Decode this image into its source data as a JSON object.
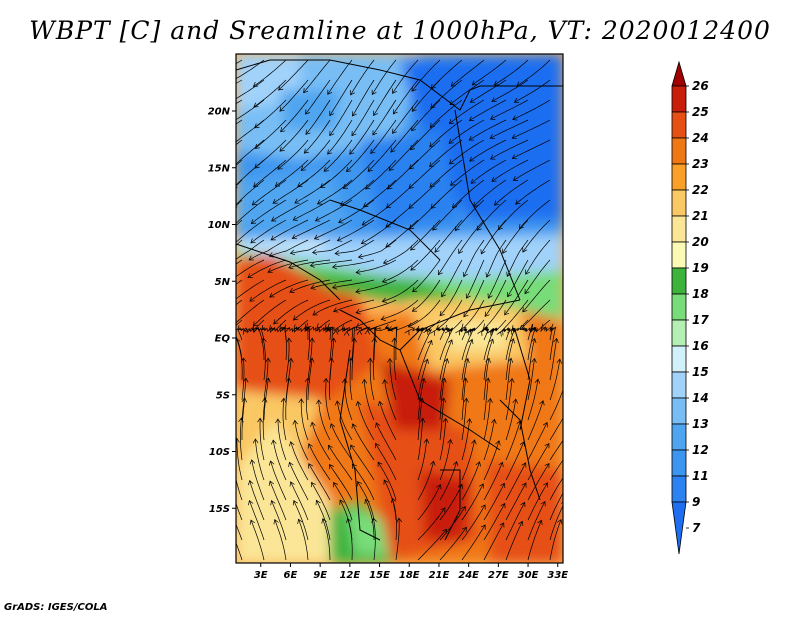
{
  "title": "WBPT [C] and Sreamline at 1000hPa, VT: 2020012400",
  "credit": "GrADS: IGES/COLA",
  "map": {
    "lat_labels": [
      {
        "label": "20N",
        "value": 20
      },
      {
        "label": "15N",
        "value": 15
      },
      {
        "label": "10N",
        "value": 10
      },
      {
        "label": "5N",
        "value": 5
      },
      {
        "label": "EQ",
        "value": 0
      },
      {
        "label": "5S",
        "value": -5
      },
      {
        "label": "10S",
        "value": -10
      },
      {
        "label": "15S",
        "value": -15
      }
    ],
    "lon_labels": [
      {
        "label": "3E",
        "value": 3
      },
      {
        "label": "6E",
        "value": 6
      },
      {
        "label": "9E",
        "value": 9
      },
      {
        "label": "12E",
        "value": 12
      },
      {
        "label": "15E",
        "value": 15
      },
      {
        "label": "18E",
        "value": 18
      },
      {
        "label": "21E",
        "value": 21
      },
      {
        "label": "24E",
        "value": 24
      },
      {
        "label": "27E",
        "value": 27
      },
      {
        "label": "30E",
        "value": 30
      },
      {
        "label": "33E",
        "value": 33
      }
    ]
  },
  "colorbar": {
    "levels": [
      "7",
      "9",
      "11",
      "12",
      "13",
      "14",
      "15",
      "16",
      "17",
      "18",
      "19",
      "20",
      "21",
      "22",
      "23",
      "24",
      "25",
      "26"
    ],
    "colors": [
      "#1e6ef0",
      "#2b82f0",
      "#3c96f0",
      "#50a5f0",
      "#78bef5",
      "#a0d2fa",
      "#d2f0fa",
      "#b4f0b4",
      "#78dc78",
      "#3cb43c",
      "#fafab4",
      "#fae696",
      "#fac864",
      "#faa028",
      "#f07814",
      "#e65014",
      "#c81e0a",
      "#a00000"
    ]
  }
}
